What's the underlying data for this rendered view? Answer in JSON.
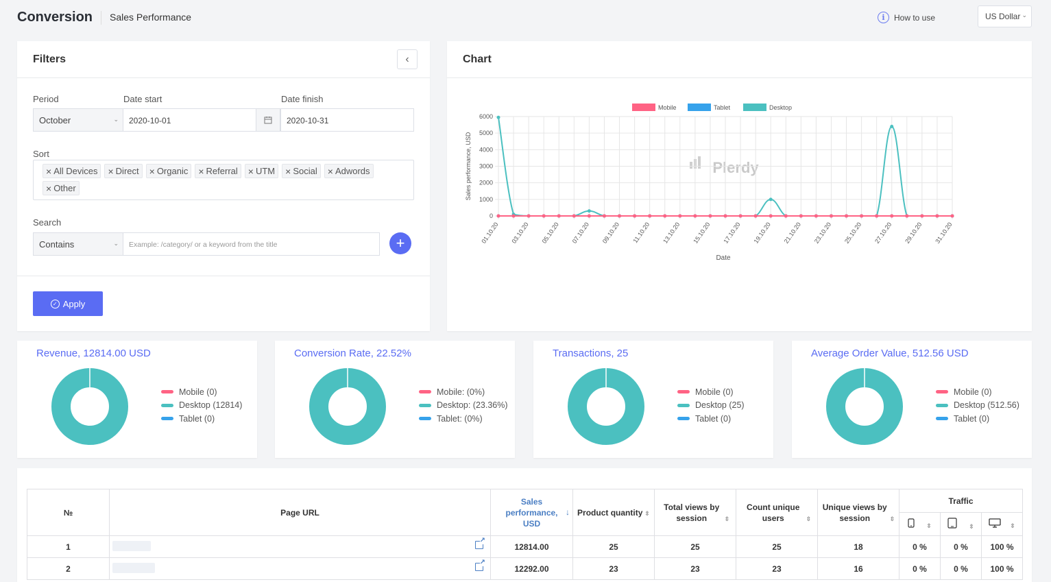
{
  "header": {
    "title": "Conversion",
    "subtitle": "Sales Performance",
    "how_to_use": "How to use",
    "currency": "US Dollar"
  },
  "filters": {
    "title": "Filters",
    "period_label": "Period",
    "period_value": "October",
    "date_start_label": "Date start",
    "date_start_value": "2020-10-01",
    "date_finish_label": "Date finish",
    "date_finish_value": "2020-10-31",
    "sort_label": "Sort",
    "sort_chips": [
      "All Devices",
      "Direct",
      "Organic",
      "Referral",
      "UTM",
      "Social",
      "Adwords",
      "Other"
    ],
    "search_label": "Search",
    "search_mode": "Contains",
    "search_placeholder": "Example: /category/ or a keyword from the title",
    "apply_label": "Apply"
  },
  "chart_card": {
    "title": "Chart",
    "watermark": "Plerdy"
  },
  "chart_data": {
    "type": "line",
    "xlabel": "Date",
    "ylabel": "Sales performance, USD",
    "ylim": [
      0,
      6000
    ],
    "yticks": [
      0,
      1000,
      2000,
      3000,
      4000,
      5000,
      6000
    ],
    "legend_position": "top",
    "grid": true,
    "x": [
      "01.10.20",
      "02.10.20",
      "03.10.20",
      "04.10.20",
      "05.10.20",
      "06.10.20",
      "07.10.20",
      "08.10.20",
      "09.10.20",
      "10.10.20",
      "11.10.20",
      "12.10.20",
      "13.10.20",
      "14.10.20",
      "15.10.20",
      "16.10.20",
      "17.10.20",
      "18.10.20",
      "19.10.20",
      "20.10.20",
      "21.10.20",
      "22.10.20",
      "23.10.20",
      "24.10.20",
      "25.10.20",
      "26.10.20",
      "27.10.20",
      "28.10.20",
      "29.10.20",
      "30.10.20",
      "31.10.20"
    ],
    "xtick_labels": [
      "01.10.20",
      "03.10.20",
      "05.10.20",
      "07.10.20",
      "09.10.20",
      "11.10.20",
      "13.10.20",
      "15.10.20",
      "17.10.20",
      "19.10.20",
      "21.10.20",
      "23.10.20",
      "25.10.20",
      "27.10.20",
      "29.10.20",
      "31.10.20"
    ],
    "series": [
      {
        "name": "Mobile",
        "color": "#ff6384",
        "values": [
          0,
          0,
          0,
          0,
          0,
          0,
          0,
          0,
          0,
          0,
          0,
          0,
          0,
          0,
          0,
          0,
          0,
          0,
          0,
          0,
          0,
          0,
          0,
          0,
          0,
          0,
          0,
          0,
          0,
          0,
          0
        ]
      },
      {
        "name": "Tablet",
        "color": "#36a2eb",
        "values": [
          0,
          0,
          0,
          0,
          0,
          0,
          0,
          0,
          0,
          0,
          0,
          0,
          0,
          0,
          0,
          0,
          0,
          0,
          0,
          0,
          0,
          0,
          0,
          0,
          0,
          0,
          0,
          0,
          0,
          0,
          0
        ]
      },
      {
        "name": "Desktop",
        "color": "#4bc0c0",
        "values": [
          5950,
          100,
          0,
          0,
          0,
          0,
          300,
          0,
          0,
          0,
          0,
          0,
          0,
          0,
          0,
          0,
          0,
          0,
          1000,
          0,
          0,
          0,
          0,
          0,
          0,
          0,
          5400,
          0,
          0,
          0,
          0
        ]
      }
    ]
  },
  "kpis": [
    {
      "title": "Revenue, 12814.00 USD",
      "legend": [
        "Mobile (0)",
        "Desktop (12814)",
        "Tablet (0)"
      ]
    },
    {
      "title": "Conversion Rate, 22.52%",
      "legend": [
        "Mobile: (0%)",
        "Desktop: (23.36%)",
        "Tablet: (0%)"
      ]
    },
    {
      "title": "Transactions, 25",
      "legend": [
        "Mobile (0)",
        "Desktop (25)",
        "Tablet (0)"
      ]
    },
    {
      "title": "Average Order Value, 512.56 USD",
      "legend": [
        "Mobile (0)",
        "Desktop (512.56)",
        "Tablet (0)"
      ]
    }
  ],
  "colors": {
    "mobile": "#ff6384",
    "desktop": "#4bc0c0",
    "tablet": "#36a2eb",
    "accent": "#5a6cf3"
  },
  "table": {
    "headers": {
      "num": "№",
      "url": "Page URL",
      "sales": "Sales performance, USD",
      "qty": "Product quantity",
      "views": "Total views by session",
      "users": "Count unique users",
      "unique_views": "Unique views by session",
      "traffic": "Traffic"
    },
    "rows": [
      {
        "num": "1",
        "sales": "12814.00",
        "qty": "25",
        "views": "25",
        "users": "25",
        "unique_views": "18",
        "mobile": "0 %",
        "tablet": "0 %",
        "desktop": "100 %"
      },
      {
        "num": "2",
        "sales": "12292.00",
        "qty": "23",
        "views": "23",
        "users": "23",
        "unique_views": "16",
        "mobile": "0 %",
        "tablet": "0 %",
        "desktop": "100 %"
      }
    ]
  }
}
